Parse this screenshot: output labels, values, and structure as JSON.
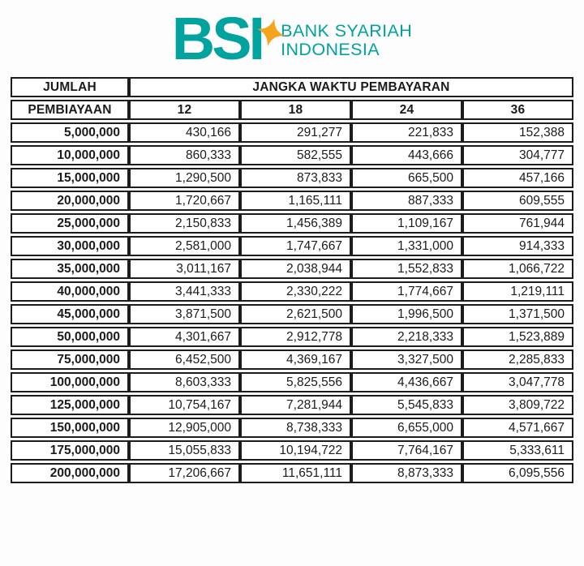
{
  "logo": {
    "acronym": "BSI",
    "name_line1": "BANK SYARIAH",
    "name_line2": "INDONESIA"
  },
  "colors": {
    "teal": "#00a39d",
    "star": "#f6a41f",
    "text": "#1b1b1b",
    "border": "#1d1d1d",
    "background": "#fdfdfd"
  },
  "table": {
    "corner_title_line1": "JUMLAH",
    "corner_title_line2": "PEMBIAYAAN",
    "span_header": "JANGKA WAKTU PEMBAYARAN",
    "period_columns": [
      "12",
      "18",
      "24",
      "36"
    ],
    "rows": [
      {
        "amount": "5,000,000",
        "values": [
          "430,166",
          "291,277",
          "221,833",
          "152,388"
        ]
      },
      {
        "amount": "10,000,000",
        "values": [
          "860,333",
          "582,555",
          "443,666",
          "304,777"
        ]
      },
      {
        "amount": "15,000,000",
        "values": [
          "1,290,500",
          "873,833",
          "665,500",
          "457,166"
        ]
      },
      {
        "amount": "20,000,000",
        "values": [
          "1,720,667",
          "1,165,111",
          "887,333",
          "609,555"
        ]
      },
      {
        "amount": "25,000,000",
        "values": [
          "2,150,833",
          "1,456,389",
          "1,109,167",
          "761,944"
        ]
      },
      {
        "amount": "30,000,000",
        "values": [
          "2,581,000",
          "1,747,667",
          "1,331,000",
          "914,333"
        ]
      },
      {
        "amount": "35,000,000",
        "values": [
          "3,011,167",
          "2,038,944",
          "1,552,833",
          "1,066,722"
        ]
      },
      {
        "amount": "40,000,000",
        "values": [
          "3,441,333",
          "2,330,222",
          "1,774,667",
          "1,219,111"
        ]
      },
      {
        "amount": "45,000,000",
        "values": [
          "3,871,500",
          "2,621,500",
          "1,996,500",
          "1,371,500"
        ]
      },
      {
        "amount": "50,000,000",
        "values": [
          "4,301,667",
          "2,912,778",
          "2,218,333",
          "1,523,889"
        ]
      },
      {
        "amount": "75,000,000",
        "values": [
          "6,452,500",
          "4,369,167",
          "3,327,500",
          "2,285,833"
        ]
      },
      {
        "amount": "100,000,000",
        "values": [
          "8,603,333",
          "5,825,556",
          "4,436,667",
          "3,047,778"
        ]
      },
      {
        "amount": "125,000,000",
        "values": [
          "10,754,167",
          "7,281,944",
          "5,545,833",
          "3,809,722"
        ]
      },
      {
        "amount": "150,000,000",
        "values": [
          "12,905,000",
          "8,738,333",
          "6,655,000",
          "4,571,667"
        ]
      },
      {
        "amount": "175,000,000",
        "values": [
          "15,055,833",
          "10,194,722",
          "7,764,167",
          "5,333,611"
        ]
      },
      {
        "amount": "200,000,000",
        "values": [
          "17,206,667",
          "11,651,111",
          "8,873,333",
          "6,095,556"
        ]
      }
    ]
  }
}
